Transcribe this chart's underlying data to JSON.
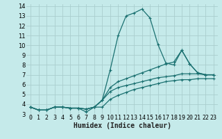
{
  "title": "",
  "xlabel": "Humidex (Indice chaleur)",
  "ylabel": "",
  "background_color": "#c5eaea",
  "grid_color": "#aacece",
  "line_color": "#1a7070",
  "xlim": [
    -0.5,
    23.5
  ],
  "ylim": [
    3,
    14.2
  ],
  "xtick_values": [
    0,
    1,
    2,
    3,
    4,
    5,
    6,
    7,
    8,
    9,
    10,
    11,
    12,
    13,
    14,
    15,
    16,
    17,
    18,
    19,
    20,
    21,
    22,
    23
  ],
  "ytick_values": [
    3,
    4,
    5,
    6,
    7,
    8,
    9,
    10,
    11,
    12,
    13,
    14
  ],
  "lines": [
    {
      "x": [
        0,
        1,
        2,
        3,
        4,
        5,
        6,
        7,
        8,
        9,
        10,
        11,
        12,
        13,
        14,
        15,
        16,
        17,
        18,
        19,
        20,
        21,
        22,
        23
      ],
      "y": [
        3.7,
        3.4,
        3.4,
        3.7,
        3.7,
        3.6,
        3.6,
        3.5,
        3.7,
        4.4,
        7.5,
        11.0,
        13.0,
        13.3,
        13.7,
        12.8,
        10.1,
        8.2,
        8.0,
        9.5,
        8.1,
        7.2,
        7.0,
        7.0
      ]
    },
    {
      "x": [
        0,
        1,
        2,
        3,
        4,
        5,
        6,
        7,
        8,
        9,
        10,
        11,
        12,
        13,
        14,
        15,
        16,
        17,
        18,
        19,
        20,
        21,
        22,
        23
      ],
      "y": [
        3.7,
        3.4,
        3.4,
        3.7,
        3.7,
        3.6,
        3.6,
        3.5,
        3.7,
        4.4,
        5.7,
        6.3,
        6.6,
        6.9,
        7.2,
        7.5,
        7.8,
        8.1,
        8.3,
        9.5,
        8.1,
        7.2,
        7.0,
        7.0
      ]
    },
    {
      "x": [
        0,
        1,
        2,
        3,
        4,
        5,
        6,
        7,
        8,
        9,
        10,
        11,
        12,
        13,
        14,
        15,
        16,
        17,
        18,
        19,
        20,
        21,
        22,
        23
      ],
      "y": [
        3.7,
        3.4,
        3.4,
        3.7,
        3.7,
        3.6,
        3.6,
        3.5,
        3.7,
        4.4,
        5.3,
        5.7,
        5.9,
        6.1,
        6.3,
        6.5,
        6.7,
        6.8,
        6.9,
        7.1,
        7.1,
        7.1,
        7.0,
        7.0
      ]
    },
    {
      "x": [
        0,
        1,
        2,
        3,
        4,
        5,
        6,
        7,
        8,
        9,
        10,
        11,
        12,
        13,
        14,
        15,
        16,
        17,
        18,
        19,
        20,
        21,
        22,
        23
      ],
      "y": [
        3.7,
        3.4,
        3.4,
        3.7,
        3.7,
        3.6,
        3.6,
        3.2,
        3.7,
        3.7,
        4.5,
        4.9,
        5.2,
        5.5,
        5.7,
        5.9,
        6.1,
        6.3,
        6.4,
        6.5,
        6.5,
        6.6,
        6.6,
        6.6
      ]
    }
  ],
  "font_size_label": 7,
  "font_size_tick": 6,
  "marker": "+",
  "marker_size": 3.5,
  "linewidth": 0.9
}
